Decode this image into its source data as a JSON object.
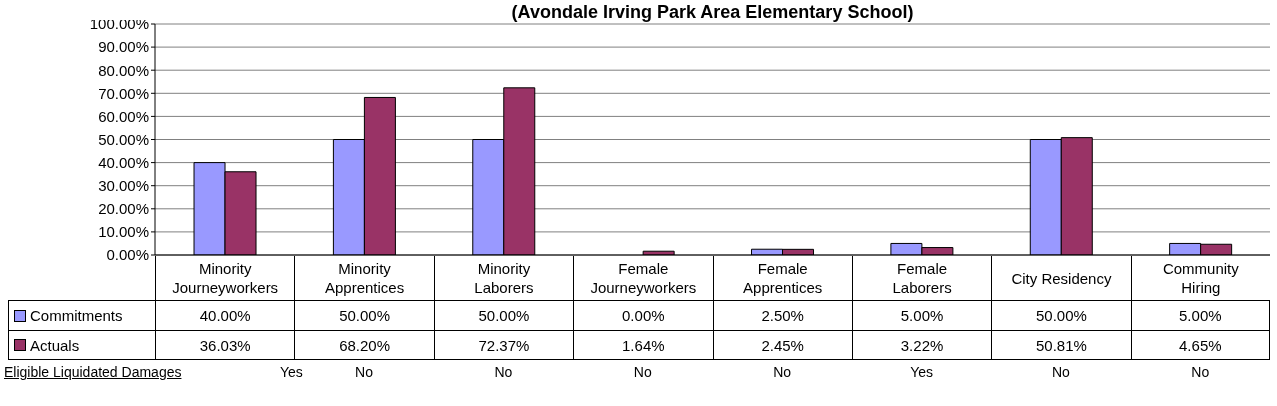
{
  "chart_data": {
    "type": "bar",
    "title": "(Avondale Irving Park Area Elementary School)",
    "categories": [
      "Minority Journeyworkers",
      "Minority Apprentices",
      "Minority Laborers",
      "Female Journeyworkers",
      "Female Apprentices",
      "Female Laborers",
      "City Residency",
      "Community Hiring"
    ],
    "series": [
      {
        "name": "Commitments",
        "color": "#9999ff",
        "values": [
          40,
          50,
          50,
          0,
          2.5,
          5,
          50,
          5
        ],
        "value_labels": [
          "40.00%",
          "50.00%",
          "50.00%",
          "0.00%",
          "2.50%",
          "5.00%",
          "50.00%",
          "5.00%"
        ]
      },
      {
        "name": "Actuals",
        "color": "#993366",
        "values": [
          36.03,
          68.2,
          72.37,
          1.64,
          2.45,
          3.22,
          50.81,
          4.65
        ],
        "value_labels": [
          "36.03%",
          "68.20%",
          "72.37%",
          "1.64%",
          "2.45%",
          "3.22%",
          "50.81%",
          "4.65%"
        ]
      }
    ],
    "ylim": [
      0,
      100
    ],
    "yticks": [
      {
        "value": 0,
        "label": "0.00%"
      },
      {
        "value": 10,
        "label": "10.00%"
      },
      {
        "value": 20,
        "label": "20.00%"
      },
      {
        "value": 30,
        "label": "30.00%"
      },
      {
        "value": 40,
        "label": "40.00%"
      },
      {
        "value": 50,
        "label": "50.00%"
      },
      {
        "value": 60,
        "label": "60.00%"
      },
      {
        "value": 70,
        "label": "70.00%"
      },
      {
        "value": 80,
        "label": "80.00%"
      },
      {
        "value": 90,
        "label": "90.00%"
      },
      {
        "value": 100,
        "label": "100.00%"
      }
    ],
    "grid": "y",
    "legend": "bottom left",
    "annotations": [
      "Eligible Liquidated Damages",
      "Yes",
      "No",
      "No",
      "No",
      "No",
      "Yes",
      "No",
      "No"
    ]
  }
}
